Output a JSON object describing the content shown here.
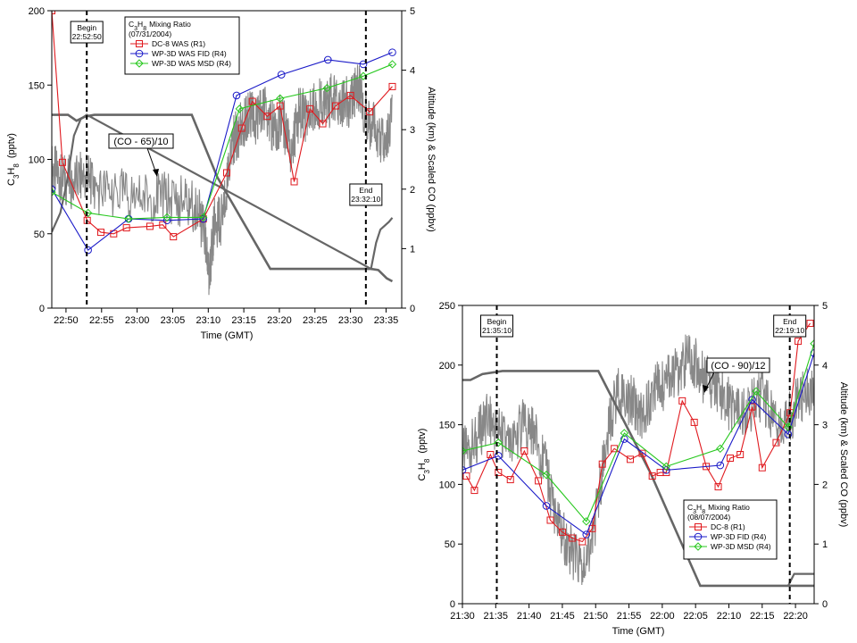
{
  "chart_data": [
    {
      "type": "line",
      "title": "C3H8 Mixing Ratio",
      "subtitle": "(07/31/2004)",
      "xlabel": "Time (GMT)",
      "ylabel_main": "C",
      "ylabel_sub3": "3",
      "ylabel_mid": "H",
      "ylabel_sub8": "8",
      "ylabel_unit": "(pptv)",
      "y2label": "Altitude (km) & Scaled CO (ppbv)",
      "xlim": [
        22.8,
        23.62
      ],
      "ylim": [
        0,
        200
      ],
      "y2lim": [
        0,
        5
      ],
      "xticks": [
        {
          "v": 22.8333,
          "label": "22:50"
        },
        {
          "v": 22.9167,
          "label": "22:55"
        },
        {
          "v": 23.0,
          "label": "23:00"
        },
        {
          "v": 23.0833,
          "label": "23:05"
        },
        {
          "v": 23.1667,
          "label": "23:10"
        },
        {
          "v": 23.25,
          "label": "23:15"
        },
        {
          "v": 23.3333,
          "label": "23:20"
        },
        {
          "v": 23.4167,
          "label": "23:25"
        },
        {
          "v": 23.5,
          "label": "23:30"
        },
        {
          "v": 23.5833,
          "label": "23:35"
        }
      ],
      "yticks": [
        "0",
        "50",
        "100",
        "150",
        "200"
      ],
      "y2ticks": [
        "0",
        "1",
        "2",
        "3",
        "4",
        "5"
      ],
      "begin": {
        "x": 22.882,
        "line1": "Begin",
        "line2": "22:52:50"
      },
      "end": {
        "x": 23.536,
        "line1": "End",
        "line2": "23:32:10"
      },
      "co_label": "(CO - 65)/10",
      "series": [
        {
          "name": "DC-8 WAS (R1)",
          "color": "#e0191e",
          "marker": "square",
          "x": [
            22.8,
            22.825,
            22.883,
            22.915,
            22.945,
            22.975,
            23.03,
            23.06,
            23.085,
            23.155,
            23.21,
            23.245,
            23.27,
            23.305,
            23.335,
            23.368,
            23.405,
            23.435,
            23.465,
            23.5,
            23.545,
            23.598
          ],
          "y": [
            200,
            98,
            59,
            51,
            50,
            54,
            55,
            56,
            48,
            60,
            91,
            121,
            139,
            129,
            136,
            85,
            134,
            124,
            136,
            143,
            132,
            149
          ]
        },
        {
          "name": "WP-3D WAS FID (R4)",
          "color": "#1a1ac8",
          "marker": "circle",
          "x": [
            22.8,
            22.885,
            22.98,
            23.07,
            23.155,
            23.233,
            23.338,
            23.447,
            23.53,
            23.598
          ],
          "y": [
            80,
            39,
            60,
            59,
            60,
            143,
            157,
            167,
            164,
            172
          ]
        },
        {
          "name": "WP-3D WAS MSD (R4)",
          "color": "#27c81e",
          "marker": "diamond",
          "x": [
            22.8,
            22.885,
            22.98,
            23.07,
            23.155,
            23.24,
            23.335,
            23.445,
            23.53,
            23.598
          ],
          "y": [
            78,
            64,
            60,
            61,
            61,
            134,
            141,
            148,
            156,
            164
          ]
        }
      ],
      "altitude": {
        "color": "#666666",
        "x": [
          22.8,
          22.838,
          22.858,
          22.878,
          22.9,
          23.128,
          23.188,
          23.312,
          23.548,
          23.565,
          23.585,
          23.598
        ],
        "y": [
          3.25,
          3.25,
          3.15,
          3.22,
          3.25,
          3.25,
          2.2,
          0.66,
          0.66,
          0.64,
          0.5,
          0.45
        ]
      },
      "second_line": {
        "color": "#666666",
        "x": [
          22.8,
          22.82,
          22.835,
          22.852,
          22.868,
          22.882,
          23.548,
          23.56,
          23.57,
          23.59,
          23.598
        ],
        "y": [
          1.28,
          1.6,
          2.1,
          2.9,
          3.18,
          3.25,
          0.66,
          1.1,
          1.32,
          1.45,
          1.52
        ]
      },
      "co_noise": {
        "color": "#888888",
        "x": [
          22.8,
          22.82,
          22.85,
          22.88,
          22.9,
          22.95,
          23.0,
          23.05,
          23.1,
          23.14,
          23.16,
          23.17,
          23.18,
          23.2,
          23.22,
          23.24,
          23.26,
          23.28,
          23.3,
          23.32,
          23.34,
          23.36,
          23.38,
          23.4,
          23.42,
          23.44,
          23.46,
          23.48,
          23.5,
          23.52,
          23.54,
          23.56,
          23.58,
          23.598
        ],
        "y": [
          2.35,
          2.2,
          2.1,
          2.25,
          2.0,
          1.95,
          1.85,
          1.9,
          1.8,
          1.7,
          1.2,
          0.5,
          1.4,
          1.5,
          2.7,
          3.0,
          3.3,
          3.1,
          3.4,
          3.0,
          3.2,
          2.6,
          3.3,
          3.2,
          3.5,
          3.3,
          3.6,
          3.4,
          3.5,
          3.7,
          3.1,
          3.0,
          2.7,
          3.3
        ]
      }
    },
    {
      "type": "line",
      "title": "C3H8 Mixing Ratio",
      "subtitle": "(08/07/2004)",
      "xlabel": "Time (GMT)",
      "ylabel_main": "C",
      "ylabel_sub3": "3",
      "ylabel_mid": "H",
      "ylabel_sub8": "8",
      "ylabel_unit": "(pptv)",
      "y2label": "Altitude (km) & Scaled CO (ppbv)",
      "xlim": [
        21.5,
        22.38
      ],
      "ylim": [
        0,
        250
      ],
      "y2lim": [
        0,
        5
      ],
      "xticks": [
        {
          "v": 21.5,
          "label": "21:30"
        },
        {
          "v": 21.5833,
          "label": "21:35"
        },
        {
          "v": 21.6667,
          "label": "21:40"
        },
        {
          "v": 21.75,
          "label": "21:45"
        },
        {
          "v": 21.8333,
          "label": "21:50"
        },
        {
          "v": 21.9167,
          "label": "21:55"
        },
        {
          "v": 22.0,
          "label": "22:00"
        },
        {
          "v": 22.0833,
          "label": "22:05"
        },
        {
          "v": 22.1667,
          "label": "22:10"
        },
        {
          "v": 22.25,
          "label": "22:15"
        },
        {
          "v": 22.3333,
          "label": "22:20"
        }
      ],
      "yticks": [
        "0",
        "50",
        "100",
        "150",
        "200",
        "250"
      ],
      "y2ticks": [
        "0",
        "1",
        "2",
        "3",
        "4",
        "5"
      ],
      "begin": {
        "x": 21.586,
        "line1": "Begin",
        "line2": "21:35:10"
      },
      "end": {
        "x": 22.319,
        "line1": "End",
        "line2": "22:19:10"
      },
      "co_label": "(CO - 90)/12",
      "series": [
        {
          "name": "DC-8 (R1)",
          "color": "#e0191e",
          "marker": "square",
          "x": [
            21.51,
            21.53,
            21.57,
            21.59,
            21.62,
            21.655,
            21.69,
            21.72,
            21.75,
            21.775,
            21.8,
            21.825,
            21.85,
            21.88,
            21.92,
            21.95,
            21.975,
            21.995,
            22.01,
            22.05,
            22.08,
            22.11,
            22.14,
            22.17,
            22.195,
            22.225,
            22.25,
            22.285,
            22.32,
            22.34,
            22.37
          ],
          "y": [
            107,
            95,
            125,
            110,
            104,
            128,
            103,
            70,
            60,
            55,
            52,
            63,
            117,
            130,
            121,
            126,
            107,
            110,
            110,
            170,
            152,
            115,
            98,
            122,
            125,
            165,
            114,
            135,
            160,
            220,
            235
          ]
        },
        {
          "name": "WP-3D FID (R4)",
          "color": "#1a1ac8",
          "marker": "circle",
          "x": [
            21.5,
            21.59,
            21.71,
            21.81,
            21.905,
            22.01,
            22.145,
            22.225,
            22.315,
            22.38
          ],
          "y": [
            112,
            124,
            82,
            58,
            138,
            112,
            116,
            171,
            142,
            210
          ]
        },
        {
          "name": "WP-3D MSD (R4)",
          "color": "#27c81e",
          "marker": "diamond",
          "x": [
            21.5,
            21.59,
            21.71,
            21.81,
            21.905,
            22.01,
            22.145,
            22.235,
            22.315,
            22.38
          ],
          "y": [
            128,
            135,
            108,
            69,
            143,
            115,
            130,
            178,
            148,
            218
          ]
        }
      ],
      "altitude": {
        "color": "#666666",
        "x": [
          21.5,
          21.52,
          21.55,
          21.6,
          21.84,
          21.97,
          22.095,
          22.315,
          22.38
        ],
        "y": [
          3.75,
          3.75,
          3.85,
          3.9,
          3.9,
          2.2,
          0.3,
          0.3,
          0.3
        ]
      },
      "second_line": {
        "color": "#666666",
        "x": [
          22.315,
          22.33,
          22.38
        ],
        "y": [
          0.3,
          0.5,
          0.5
        ]
      },
      "co_noise": {
        "color": "#888888",
        "x": [
          21.5,
          21.53,
          21.56,
          21.59,
          21.62,
          21.65,
          21.68,
          21.71,
          21.74,
          21.77,
          21.8,
          21.83,
          21.86,
          21.89,
          21.92,
          21.95,
          21.98,
          22.01,
          22.04,
          22.07,
          22.1,
          22.13,
          22.16,
          22.19,
          22.22,
          22.25,
          22.28,
          22.31,
          22.34,
          22.38
        ],
        "y": [
          2.5,
          2.7,
          3.1,
          2.9,
          2.6,
          3.0,
          2.9,
          2.2,
          1.3,
          0.9,
          0.6,
          1.2,
          2.8,
          3.6,
          3.4,
          3.2,
          3.6,
          3.7,
          3.9,
          4.2,
          3.8,
          3.7,
          3.4,
          3.2,
          3.3,
          3.5,
          3.1,
          3.0,
          3.4,
          3.6
        ]
      }
    }
  ]
}
